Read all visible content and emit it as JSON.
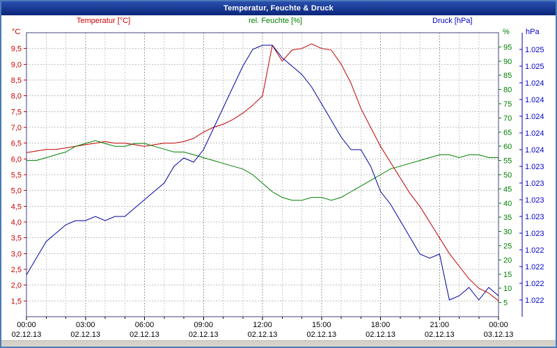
{
  "window": {
    "title": "Temperatur, Feuchte & Druck"
  },
  "chart_data": {
    "type": "line",
    "title": "Temperatur, Feuchte & Druck",
    "x_hours": [
      0,
      0.5,
      1,
      1.5,
      2,
      2.5,
      3,
      3.5,
      4,
      4.5,
      5,
      5.5,
      6,
      6.5,
      7,
      7.5,
      8,
      8.5,
      9,
      9.5,
      10,
      10.5,
      11,
      11.5,
      12,
      12.5,
      13,
      13.5,
      14,
      14.5,
      15,
      15.5,
      16,
      16.5,
      17,
      17.5,
      18,
      18.5,
      19,
      19.5,
      20,
      20.5,
      21,
      21.5,
      22,
      22.5,
      23,
      23.5,
      24
    ],
    "x_axis": {
      "tick_hours": [
        0,
        3,
        6,
        9,
        12,
        15,
        18,
        21,
        24
      ],
      "tick_times": [
        "00:00",
        "03:00",
        "06:00",
        "09:00",
        "12:00",
        "15:00",
        "18:00",
        "21:00",
        "00:00"
      ],
      "tick_dates": [
        "02.12.13",
        "02.12.13",
        "02.12.13",
        "02.12.13",
        "02.12.13",
        "02.12.13",
        "02.12.13",
        "02.12.13",
        "03.12.13"
      ]
    },
    "axes": {
      "temperature": {
        "title": "Temperatur [°C]",
        "unit": "°C",
        "color": "#cc0000",
        "min": 1.0,
        "max": 10.0,
        "tick_values": [
          9.5,
          9.0,
          8.5,
          8.0,
          7.5,
          7.0,
          6.5,
          6.0,
          5.5,
          5.0,
          4.5,
          4.0,
          3.5,
          3.0,
          2.5,
          2.0,
          1.5
        ],
        "tick_labels": [
          "9,5",
          "9,0",
          "8,5",
          "8,0",
          "7,5",
          "7,0",
          "6,5",
          "6,0",
          "5,5",
          "5,0",
          "4,5",
          "4,0",
          "3,5",
          "3,0",
          "2,5",
          "2,0",
          "1,5"
        ]
      },
      "humidity": {
        "title": "rel. Feuchte [%]",
        "unit": "%",
        "color": "#008000",
        "min": 0,
        "max": 100,
        "tick_values": [
          95,
          90,
          85,
          80,
          75,
          70,
          65,
          60,
          55,
          50,
          45,
          40,
          35,
          30,
          25,
          20,
          15,
          10,
          5
        ],
        "tick_labels": [
          "95",
          "90",
          "85",
          "80",
          "75",
          "70",
          "65",
          "60",
          "55",
          "50",
          "45",
          "40",
          "35",
          "30",
          "25",
          "20",
          "15",
          "10",
          "5"
        ]
      },
      "pressure": {
        "title": "Druck [hPa]",
        "unit": "hPa",
        "color": "#0000cc",
        "min": 1021.6,
        "max": 1025.0,
        "tick_values": [
          1024.8,
          1024.6,
          1024.4,
          1024.2,
          1024.0,
          1023.8,
          1023.6,
          1023.4,
          1023.2,
          1023.0,
          1022.8,
          1022.6,
          1022.4,
          1022.2,
          1022.0,
          1021.8
        ],
        "tick_labels": [
          "1.025",
          "1.025",
          "1.024",
          "1.024",
          "1.024",
          "1.024",
          "1.024",
          "1.023",
          "1.023",
          "1.023",
          "1.023",
          "1.023",
          "1.022",
          "1.022",
          "1.022",
          "1.022"
        ]
      }
    },
    "series": [
      {
        "key": "temperature",
        "name": "Temperatur",
        "axis": "temperature",
        "color": "#c00000",
        "values": [
          6.2,
          6.25,
          6.3,
          6.3,
          6.35,
          6.4,
          6.45,
          6.5,
          6.55,
          6.5,
          6.5,
          6.45,
          6.4,
          6.45,
          6.5,
          6.5,
          6.55,
          6.65,
          6.85,
          7.0,
          7.1,
          7.25,
          7.45,
          7.7,
          8.0,
          9.6,
          9.1,
          9.45,
          9.5,
          9.65,
          9.5,
          9.45,
          9.0,
          8.4,
          7.6,
          7.0,
          6.4,
          5.9,
          5.4,
          4.9,
          4.5,
          4.0,
          3.5,
          3.0,
          2.6,
          2.2,
          1.9,
          1.75,
          1.5
        ]
      },
      {
        "key": "humidity",
        "name": "rel. Feuchte",
        "axis": "humidity",
        "color": "#008000",
        "values": [
          55,
          55,
          56,
          57,
          58,
          60,
          61,
          62,
          61,
          60,
          60,
          61,
          61,
          60,
          59,
          58,
          58,
          57,
          56,
          55,
          54,
          53,
          52,
          50,
          47,
          44,
          42,
          41,
          41,
          42,
          42,
          41,
          42,
          44,
          46,
          48,
          50,
          52,
          53,
          54,
          55,
          56,
          57,
          57,
          56,
          57,
          57,
          56,
          56
        ]
      },
      {
        "key": "pressure",
        "name": "Druck",
        "axis": "pressure",
        "color": "#0000a0",
        "values": [
          1022.1,
          1022.3,
          1022.5,
          1022.6,
          1022.7,
          1022.75,
          1022.75,
          1022.8,
          1022.75,
          1022.8,
          1022.8,
          1022.9,
          1023.0,
          1023.1,
          1023.2,
          1023.4,
          1023.5,
          1023.45,
          1023.6,
          1023.85,
          1024.1,
          1024.35,
          1024.6,
          1024.8,
          1024.85,
          1024.85,
          1024.7,
          1024.6,
          1024.5,
          1024.35,
          1024.15,
          1023.95,
          1023.75,
          1023.6,
          1023.6,
          1023.4,
          1023.1,
          1022.95,
          1022.75,
          1022.55,
          1022.35,
          1022.3,
          1022.35,
          1021.8,
          1021.85,
          1021.95,
          1021.8,
          1021.95,
          1021.85
        ]
      }
    ],
    "grid": {
      "horizontal": "dashed",
      "vertical": "dashed",
      "legend_position": "top"
    }
  }
}
